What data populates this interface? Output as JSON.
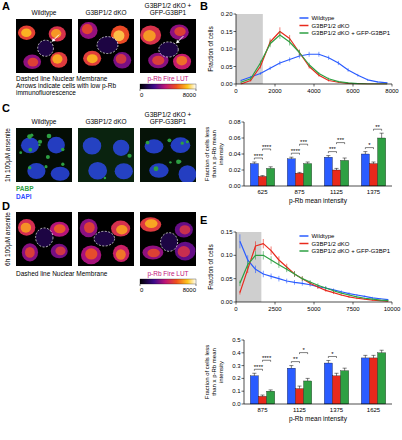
{
  "figure": {
    "letters": [
      "A",
      "B",
      "C",
      "D",
      "E"
    ],
    "image_columns": [
      "Wildtype",
      "G3BP1/2 dKO",
      "G3BP1/2 dKO + GFP-G3BP1"
    ],
    "panel_a": {
      "notes": [
        "Dashed line Nuclear Membrane",
        "Arrows indicate cells with low p-Rb immunofluorescence"
      ],
      "colorbar": {
        "label": "p-Rb Fire LUT",
        "range": [
          0,
          8000
        ],
        "ticks": [
          0,
          8000
        ]
      }
    },
    "panel_c": {
      "row_label": "1h 100μM arsenite",
      "channels": [
        {
          "name": "PABP",
          "color": "#2ea043"
        },
        {
          "name": "DAPI",
          "color": "#2f4dff"
        }
      ]
    },
    "panel_d": {
      "row_label": "6h 100μM arsenite",
      "notes": [
        "Dashed line Nuclear Membrane"
      ],
      "colorbar": {
        "label": "p-Rb Fire LUT",
        "range": [
          0,
          8000
        ],
        "ticks": [
          0,
          8000
        ]
      }
    }
  },
  "chart_data": [
    {
      "type": "line",
      "y_label": "Fraction of cells",
      "x": [
        250,
        750,
        1250,
        1750,
        2250,
        2750,
        3250,
        3750,
        4250,
        4750,
        5250,
        5750,
        6250,
        6750,
        7250,
        7750
      ],
      "series": [
        {
          "name": "Wildtype",
          "color": "#2a5cff",
          "values": [
            0.01,
            0.02,
            0.03,
            0.045,
            0.06,
            0.07,
            0.08,
            0.085,
            0.085,
            0.075,
            0.06,
            0.04,
            0.025,
            0.012,
            0.006,
            0.003
          ],
          "errors": [
            0.002,
            0.003,
            0.004,
            0.005,
            0.006,
            0.006,
            0.007,
            0.007,
            0.007,
            0.006,
            0.006,
            0.005,
            0.004,
            0.003,
            0.002,
            0.002
          ]
        },
        {
          "name": "G3BP1/2 dKO",
          "color": "#e8291c",
          "values": [
            0.0,
            0.01,
            0.05,
            0.12,
            0.15,
            0.13,
            0.09,
            0.05,
            0.025,
            0.01,
            0.005,
            0.002,
            0.001,
            0,
            0,
            0
          ],
          "errors": [
            0.001,
            0.003,
            0.006,
            0.01,
            0.012,
            0.01,
            0.008,
            0.006,
            0.004,
            0.003,
            0.002,
            0.001,
            0.001,
            0,
            0,
            0
          ]
        },
        {
          "name": "G3BP1/2 dKO + GFP-G3BP1",
          "color": "#2ea043",
          "values": [
            0.005,
            0.015,
            0.06,
            0.115,
            0.14,
            0.12,
            0.09,
            0.055,
            0.03,
            0.015,
            0.007,
            0.003,
            0.001,
            0,
            0,
            0
          ],
          "errors": [
            0.002,
            0.004,
            0.007,
            0.01,
            0.011,
            0.01,
            0.008,
            0.006,
            0.004,
            0.003,
            0.002,
            0.001,
            0.001,
            0,
            0,
            0
          ]
        }
      ],
      "xlim": [
        0,
        8000
      ],
      "xticks": [
        0,
        2000,
        4000,
        6000,
        8000
      ],
      "ylim": [
        0,
        0.2
      ],
      "yticks": [
        {
          "value": 0,
          "label": "0.00"
        },
        {
          "value": 0.05,
          "label": "0.05"
        },
        {
          "value": 0.1,
          "label": "0.10"
        },
        {
          "value": 0.15,
          "label": "0.15"
        },
        {
          "value": 0.2,
          "label": "0.20"
        }
      ],
      "shaded_range": [
        0,
        1375
      ],
      "legend": "top-right"
    },
    {
      "type": "bar",
      "y_label": "Fraction of cells less than x p-Rb mean intensity",
      "x_label": "p-Rb mean intensity",
      "categories": [
        "625",
        "875",
        "1125",
        "1375"
      ],
      "series": [
        {
          "name": "Wildtype",
          "color": "#2a5cff",
          "values": [
            0.028,
            0.034,
            0.036,
            0.04
          ],
          "errors": [
            0.002,
            0.002,
            0.002,
            0.003
          ]
        },
        {
          "name": "G3BP1/2 dKO",
          "color": "#e8291c",
          "values": [
            0.012,
            0.016,
            0.02,
            0.028
          ],
          "errors": [
            0.001,
            0.001,
            0.002,
            0.002
          ]
        },
        {
          "name": "G3BP1/2 dKO + GFP-G3BP1",
          "color": "#2ea043",
          "values": [
            0.022,
            0.028,
            0.032,
            0.06
          ],
          "errors": [
            0.002,
            0.002,
            0.003,
            0.006
          ]
        }
      ],
      "ylim": [
        0,
        0.08
      ],
      "yticks": [
        {
          "value": 0,
          "label": "0.00"
        },
        {
          "value": 0.02,
          "label": "0.02"
        },
        {
          "value": 0.04,
          "label": "0.04"
        },
        {
          "value": 0.06,
          "label": "0.06"
        },
        {
          "value": 0.08,
          "label": "0.08"
        }
      ],
      "significance": [
        [
          "****",
          "****"
        ],
        [
          "****",
          "***"
        ],
        [
          "***",
          "***"
        ],
        [
          "*",
          "**"
        ]
      ]
    },
    {
      "type": "line",
      "y_label": "Fraction of cells",
      "x": [
        250,
        750,
        1250,
        1750,
        2250,
        2750,
        3250,
        3750,
        4250,
        4750,
        5250,
        5750,
        6250,
        6750,
        7250,
        7750,
        8250,
        8750,
        9250,
        9750
      ],
      "series": [
        {
          "name": "Wildtype",
          "color": "#2a5cff",
          "values": [
            0.13,
            0.09,
            0.07,
            0.06,
            0.055,
            0.05,
            0.045,
            0.042,
            0.04,
            0.037,
            0.033,
            0.03,
            0.026,
            0.022,
            0.018,
            0.015,
            0.012,
            0.009,
            0.007,
            0.005
          ],
          "errors": [
            0.015,
            0.01,
            0.008,
            0.007,
            0.006,
            0.006,
            0.005,
            0.005,
            0.005,
            0.004,
            0.004,
            0.004,
            0.003,
            0.003,
            0.003,
            0.002,
            0.002,
            0.002,
            0.001,
            0.001
          ]
        },
        {
          "name": "G3BP1/2 dKO",
          "color": "#e8291c",
          "values": [
            0.02,
            0.07,
            0.12,
            0.125,
            0.11,
            0.09,
            0.075,
            0.06,
            0.05,
            0.04,
            0.032,
            0.025,
            0.02,
            0.015,
            0.011,
            0.008,
            0.006,
            0.004,
            0.003,
            0.002
          ],
          "errors": [
            0.004,
            0.008,
            0.01,
            0.01,
            0.009,
            0.008,
            0.007,
            0.006,
            0.005,
            0.004,
            0.004,
            0.003,
            0.003,
            0.002,
            0.002,
            0.002,
            0.001,
            0.001,
            0.001,
            0.001
          ]
        },
        {
          "name": "G3BP1/2 dKO + GFP-G3BP1",
          "color": "#2ea043",
          "values": [
            0.04,
            0.08,
            0.1,
            0.1,
            0.09,
            0.08,
            0.07,
            0.06,
            0.05,
            0.043,
            0.036,
            0.03,
            0.024,
            0.019,
            0.015,
            0.011,
            0.008,
            0.006,
            0.004,
            0.003
          ],
          "errors": [
            0.006,
            0.008,
            0.009,
            0.009,
            0.008,
            0.007,
            0.006,
            0.006,
            0.005,
            0.004,
            0.004,
            0.003,
            0.003,
            0.002,
            0.002,
            0.002,
            0.001,
            0.001,
            0.001,
            0.001
          ]
        }
      ],
      "xlim": [
        0,
        10000
      ],
      "xticks": [
        0,
        2500,
        5000,
        7500,
        10000
      ],
      "ylim": [
        0,
        0.15
      ],
      "yticks": [
        {
          "value": 0,
          "label": "0.00"
        },
        {
          "value": 0.05,
          "label": "0.05"
        },
        {
          "value": 0.1,
          "label": "0.10"
        },
        {
          "value": 0.15,
          "label": "0.15"
        }
      ],
      "shaded_range": [
        0,
        1625
      ],
      "legend": "top-right"
    },
    {
      "type": "bar",
      "y_label": "Fraction of cells less than x p-Rb mean intensity",
      "x_label": "p-Rb mean intensity",
      "categories": [
        "875",
        "1125",
        "1375",
        "1625"
      ],
      "series": [
        {
          "name": "Wildtype",
          "color": "#2a5cff",
          "values": [
            0.22,
            0.28,
            0.32,
            0.36
          ],
          "errors": [
            0.02,
            0.02,
            0.02,
            0.02
          ]
        },
        {
          "name": "G3BP1/2 dKO",
          "color": "#e8291c",
          "values": [
            0.06,
            0.12,
            0.22,
            0.36
          ],
          "errors": [
            0.01,
            0.02,
            0.02,
            0.02
          ]
        },
        {
          "name": "G3BP1/2 dKO + GFP-G3BP1",
          "color": "#2ea043",
          "values": [
            0.1,
            0.18,
            0.26,
            0.4
          ],
          "errors": [
            0.01,
            0.02,
            0.02,
            0.02
          ]
        }
      ],
      "ylim": [
        0,
        0.5
      ],
      "yticks": [
        {
          "value": 0,
          "label": "0.0"
        },
        {
          "value": 0.1,
          "label": "0.1"
        },
        {
          "value": 0.2,
          "label": "0.2"
        },
        {
          "value": 0.3,
          "label": "0.3"
        },
        {
          "value": 0.4,
          "label": "0.4"
        },
        {
          "value": 0.5,
          "label": "0.5"
        }
      ],
      "significance": [
        [
          "****",
          "****"
        ],
        [
          "**",
          "*"
        ],
        [
          "*",
          null
        ],
        [
          null,
          null
        ]
      ]
    }
  ]
}
